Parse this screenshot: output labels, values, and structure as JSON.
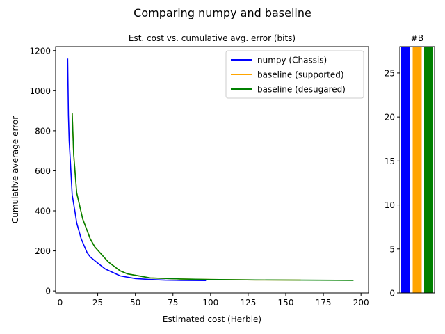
{
  "suptitle": "Comparing numpy and baseline",
  "chart_data": [
    {
      "type": "line",
      "title": "Est. cost vs. cumulative avg. error (bits)",
      "xlabel": "Estimated cost (Herbie)",
      "ylabel": "Cumulative average error",
      "xlim": [
        -3,
        205
      ],
      "ylim": [
        -10,
        1220
      ],
      "xticks": [
        0,
        25,
        50,
        75,
        100,
        125,
        150,
        175,
        200
      ],
      "yticks": [
        0,
        200,
        400,
        600,
        800,
        1000,
        1200
      ],
      "grid": false,
      "legend_position": "upper right",
      "series": [
        {
          "name": "numpy (Chassis)",
          "color": "#0000ff",
          "points": [
            [
              5,
              1160
            ],
            [
              5.5,
              880
            ],
            [
              6,
              750
            ],
            [
              7,
              620
            ],
            [
              8,
              480
            ],
            [
              10,
              390
            ],
            [
              11,
              340
            ],
            [
              14,
              260
            ],
            [
              18,
              190
            ],
            [
              20,
              170
            ],
            [
              24,
              145
            ],
            [
              30,
              110
            ],
            [
              40,
              75
            ],
            [
              50,
              62
            ],
            [
              60,
              57
            ],
            [
              70,
              54
            ],
            [
              80,
              53
            ],
            [
              97,
              52
            ]
          ]
        },
        {
          "name": "baseline (supported)",
          "color": "#ffa500",
          "points": [
            [
              8,
              890
            ],
            [
              9,
              680
            ],
            [
              11,
              490
            ],
            [
              15,
              360
            ],
            [
              20,
              260
            ],
            [
              23,
              220
            ],
            [
              32,
              145
            ],
            [
              40,
              100
            ],
            [
              45,
              85
            ],
            [
              60,
              65
            ],
            [
              80,
              60
            ],
            [
              100,
              57
            ],
            [
              130,
              55
            ],
            [
              160,
              54
            ]
          ]
        },
        {
          "name": "baseline (desugared)",
          "color": "#008000",
          "points": [
            [
              8,
              890
            ],
            [
              9,
              680
            ],
            [
              11,
              490
            ],
            [
              15,
              360
            ],
            [
              20,
              260
            ],
            [
              23,
              220
            ],
            [
              32,
              145
            ],
            [
              40,
              100
            ],
            [
              45,
              85
            ],
            [
              60,
              65
            ],
            [
              80,
              60
            ],
            [
              100,
              57
            ],
            [
              130,
              55
            ],
            [
              160,
              54
            ],
            [
              195,
              53
            ]
          ]
        }
      ]
    },
    {
      "type": "bar",
      "title": "#B",
      "ylim": [
        0,
        28
      ],
      "yticks": [
        0,
        5,
        10,
        15,
        20,
        25
      ],
      "bars": [
        {
          "value": 28,
          "color": "#0000ff"
        },
        {
          "value": 28,
          "color": "#ffa500"
        },
        {
          "value": 28,
          "color": "#008000"
        }
      ]
    }
  ]
}
